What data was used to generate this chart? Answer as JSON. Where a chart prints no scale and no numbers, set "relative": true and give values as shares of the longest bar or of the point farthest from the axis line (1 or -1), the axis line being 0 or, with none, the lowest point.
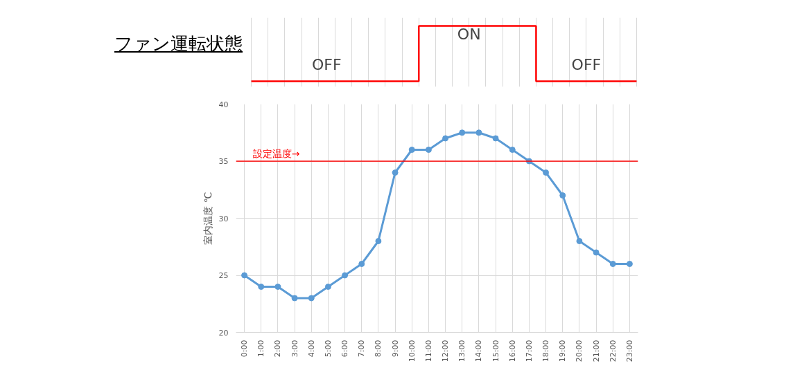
{
  "chart_data": [
    {
      "type": "step",
      "title": "ファン運転状態",
      "relative": true,
      "tick_labels": false,
      "grid": "x",
      "color": "#ff0000",
      "categories": [
        null,
        null,
        null,
        null,
        null,
        null,
        null,
        null,
        null,
        null,
        null,
        null,
        null,
        null,
        null,
        null,
        null,
        null,
        null,
        null,
        null,
        null,
        null,
        null
      ],
      "values": [
        0,
        0,
        0,
        0,
        0,
        0,
        0,
        0,
        0,
        0,
        1,
        1,
        1,
        1,
        1,
        1,
        1,
        0,
        0,
        0,
        0,
        0,
        0,
        0
      ],
      "annotations": [
        "OFF",
        "ON",
        "OFF"
      ]
    },
    {
      "type": "line",
      "ylabel": "室内温度 ℃",
      "ylim": [
        20,
        40
      ],
      "yticks": [
        20,
        25,
        30,
        35,
        40
      ],
      "grid": true,
      "marker": "circle",
      "color": "#5b9bd5",
      "categories": [
        "0:00",
        "1:00",
        "2:00",
        "3:00",
        "4:00",
        "5:00",
        "6:00",
        "7:00",
        "8:00",
        "9:00",
        "10:00",
        "11:00",
        "12:00",
        "13:00",
        "14:00",
        "15:00",
        "16:00",
        "17:00",
        "18:00",
        "19:00",
        "20:00",
        "21:00",
        "22:00",
        "23:00"
      ],
      "values": [
        25,
        24,
        24,
        23,
        23,
        24,
        25,
        26,
        28,
        34,
        36,
        36,
        37,
        37.5,
        37.5,
        37,
        36,
        35,
        34,
        32,
        28,
        27,
        26,
        26
      ],
      "ref_lines": [
        {
          "axis": "y",
          "value": 35,
          "label": "設定温度→",
          "color": "#ff0000"
        }
      ]
    }
  ]
}
